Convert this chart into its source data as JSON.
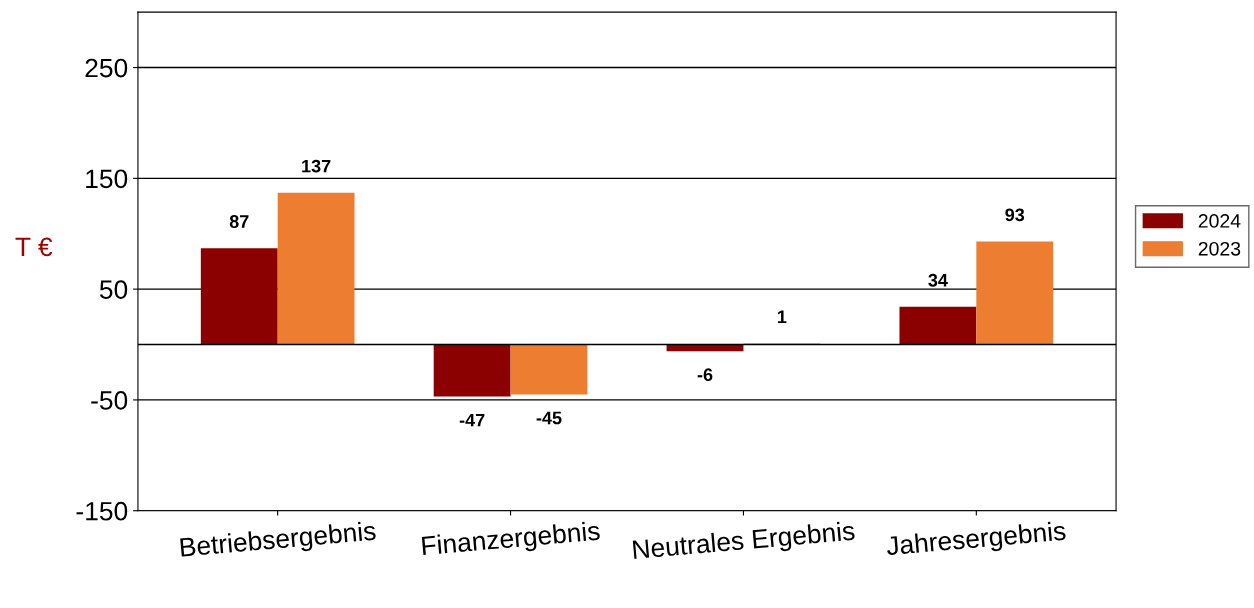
{
  "chart_data": {
    "type": "bar",
    "ylabel": "T €",
    "categories": [
      "Betriebsergebnis",
      "Finanzergebnis",
      "Neutrales Ergebnis",
      "Jahresergebnis"
    ],
    "series": [
      {
        "name": "2024",
        "color": "#8b0000",
        "values": [
          87,
          -47,
          -6,
          34
        ]
      },
      {
        "name": "2023",
        "color": "#ed7d31",
        "values": [
          137,
          -45,
          1,
          93
        ]
      }
    ],
    "ylim": [
      -150,
      300
    ],
    "yticks": [
      -150,
      -50,
      50,
      150,
      250
    ],
    "grid": "y",
    "legend": "right",
    "data_labels": true
  }
}
